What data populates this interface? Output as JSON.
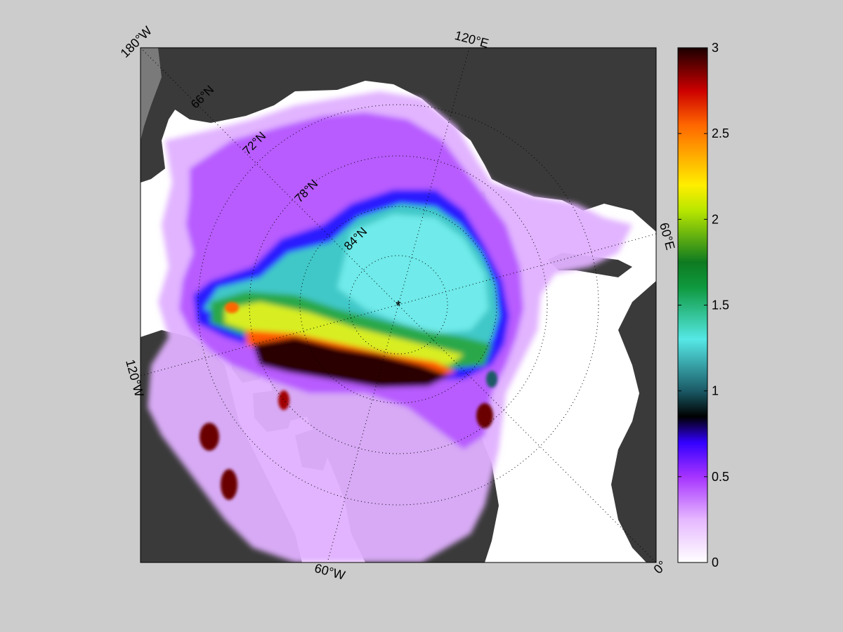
{
  "map": {
    "outer_labels": {
      "lon_180w": "180°W",
      "lon_120e": "120°E",
      "lon_60e": "60°E",
      "lon_120w": "120°W",
      "lon_60w": "60°W",
      "lon_0": "0°"
    },
    "inner_labels": {
      "lat_66n": "66°N",
      "lat_72n": "72°N",
      "lat_78n": "78°N",
      "lat_84n": "84°N"
    },
    "pole_marker": "*",
    "projection": "north polar stereographic",
    "land_color": "#3a3a3a",
    "open_water_color": "#ffffff"
  },
  "colorbar": {
    "ticks": [
      "0",
      "0.5",
      "1",
      "1.5",
      "2",
      "2.5",
      "3"
    ],
    "tick_values": [
      0,
      0.5,
      1,
      1.5,
      2,
      2.5,
      3
    ],
    "range": [
      0,
      3
    ],
    "colormap": [
      {
        "v": 0.0,
        "c": "#ffffff"
      },
      {
        "v": 0.25,
        "c": "#e6b8ff"
      },
      {
        "v": 0.5,
        "c": "#a633ff"
      },
      {
        "v": 0.7,
        "c": "#3300ff"
      },
      {
        "v": 0.85,
        "c": "#000000"
      },
      {
        "v": 1.0,
        "c": "#1a5a66"
      },
      {
        "v": 1.3,
        "c": "#55e8e6"
      },
      {
        "v": 1.6,
        "c": "#0f9a40"
      },
      {
        "v": 1.75,
        "c": "#0e7a20"
      },
      {
        "v": 2.05,
        "c": "#b8e600"
      },
      {
        "v": 2.2,
        "c": "#ffee00"
      },
      {
        "v": 2.55,
        "c": "#ff6600"
      },
      {
        "v": 2.75,
        "c": "#cc0000"
      },
      {
        "v": 3.0,
        "c": "#1a0000"
      }
    ]
  }
}
